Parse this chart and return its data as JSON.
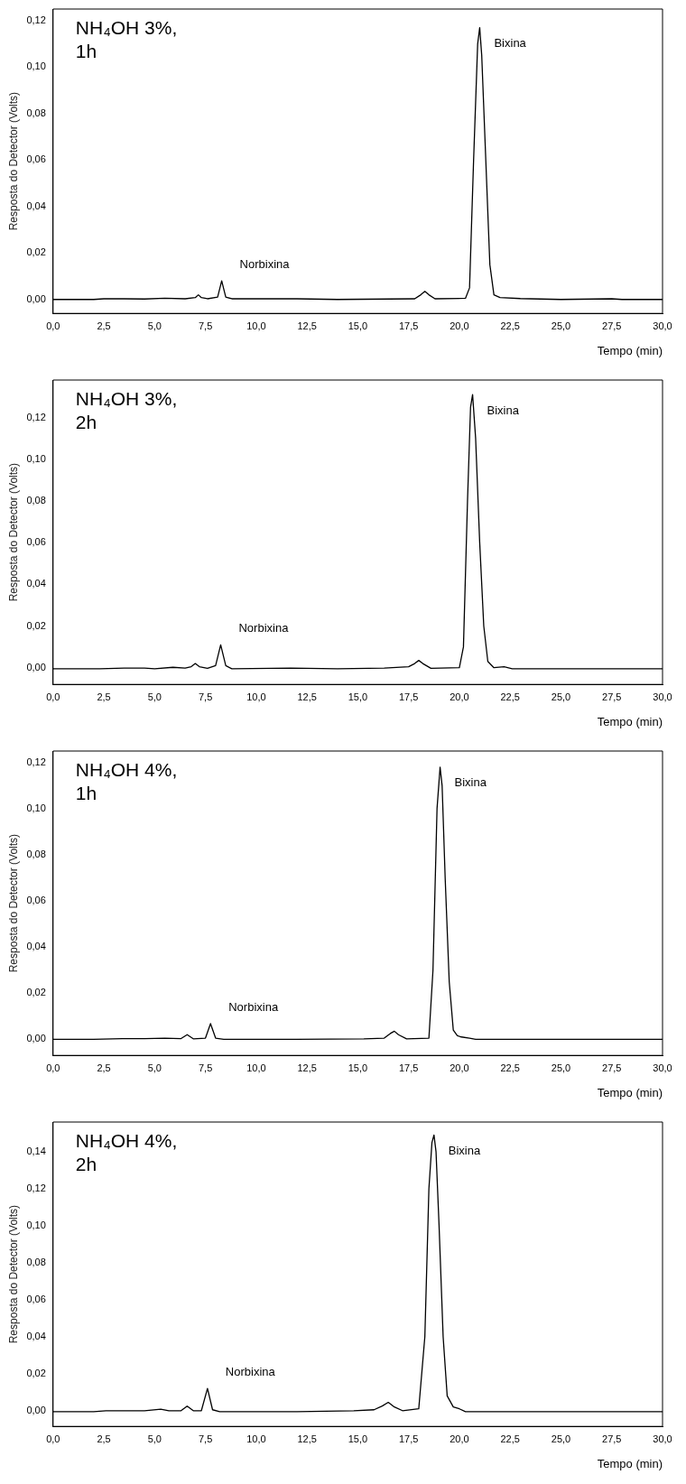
{
  "chart_data": [
    {
      "type": "line",
      "title": "NH₄OH 3%, 1h",
      "xlabel": "Tempo (min)",
      "ylabel": "Resposta do Detector (Volts)",
      "color": "#000000",
      "x": [
        0,
        2,
        2.5,
        3.5,
        4.5,
        5.5,
        6.5,
        7.0,
        7.15,
        7.3,
        7.6,
        8.1,
        8.3,
        8.5,
        8.8,
        12,
        14,
        17.8,
        18.1,
        18.3,
        18.5,
        18.8,
        20.3,
        20.5,
        20.7,
        20.9,
        21.0,
        21.1,
        21.3,
        21.5,
        21.7,
        22.0,
        23,
        25,
        27.5,
        28,
        30
      ],
      "values": [
        0,
        0,
        0.0003,
        0.0003,
        0.0002,
        0.0005,
        0.0003,
        0.0008,
        0.002,
        0.0008,
        0.0003,
        0.001,
        0.008,
        0.001,
        0.0003,
        0.0003,
        0,
        0.0003,
        0.002,
        0.0035,
        0.002,
        0.0003,
        0.0005,
        0.005,
        0.06,
        0.11,
        0.117,
        0.105,
        0.06,
        0.015,
        0.002,
        0.0008,
        0.0004,
        0,
        0.0003,
        0,
        0
      ],
      "xlim": [
        0,
        30
      ],
      "xticks": [
        {
          "value": 0,
          "label": "0,0"
        },
        {
          "value": 2.5,
          "label": "2,5"
        },
        {
          "value": 5,
          "label": "5,0"
        },
        {
          "value": 7.5,
          "label": "7,5"
        },
        {
          "value": 10,
          "label": "10,0"
        },
        {
          "value": 12.5,
          "label": "12,5"
        },
        {
          "value": 15,
          "label": "15,0"
        },
        {
          "value": 17.5,
          "label": "17,5"
        },
        {
          "value": 20,
          "label": "20,0"
        },
        {
          "value": 22.5,
          "label": "22,5"
        },
        {
          "value": 25,
          "label": "25,0"
        },
        {
          "value": 27.5,
          "label": "27,5"
        },
        {
          "value": 30,
          "label": "30,0"
        }
      ],
      "ylim": [
        -0.006,
        0.125
      ],
      "yticks": [
        {
          "value": 0,
          "label": "0,00"
        },
        {
          "value": 0.02,
          "label": "0,02"
        },
        {
          "value": 0.04,
          "label": "0,04"
        },
        {
          "value": 0.06,
          "label": "0,06"
        },
        {
          "value": 0.08,
          "label": "0,08"
        },
        {
          "value": 0.1,
          "label": "0,10"
        },
        {
          "value": 0.12,
          "label": "0,12"
        }
      ],
      "annotations": [
        {
          "text": "Norbixina",
          "x": 8.3,
          "y": 0.008
        },
        {
          "text": "Bixina",
          "x": 21.0,
          "y": 0.117
        }
      ]
    },
    {
      "type": "line",
      "title": "NH₄OH 3%, 2h",
      "xlabel": "Tempo (min)",
      "ylabel": "Resposta do Detector (Volts)",
      "color": "#000000",
      "x": [
        0,
        2.3,
        3.5,
        4.5,
        5.0,
        5.9,
        6.5,
        6.8,
        7.0,
        7.2,
        7.6,
        8.0,
        8.25,
        8.5,
        8.8,
        11.7,
        14,
        16.3,
        17.5,
        17.8,
        18.0,
        18.2,
        18.6,
        20.0,
        20.2,
        20.4,
        20.55,
        20.65,
        20.8,
        21.0,
        21.2,
        21.4,
        21.7,
        22.2,
        22.6,
        25,
        30
      ],
      "values": [
        -0.0005,
        -0.0005,
        -0.0002,
        -0.0002,
        -0.0005,
        0.0002,
        -0.0002,
        0.0005,
        0.002,
        0.0005,
        -0.0003,
        0.001,
        0.011,
        0.001,
        -0.0005,
        -0.0002,
        -0.0005,
        -0.0002,
        0.0005,
        0.002,
        0.0035,
        0.002,
        -0.0003,
        0,
        0.01,
        0.08,
        0.125,
        0.131,
        0.11,
        0.06,
        0.02,
        0.003,
        0,
        0.0005,
        -0.0005,
        -0.0005,
        -0.0005
      ],
      "xlim": [
        0,
        30
      ],
      "xticks": [
        {
          "value": 0,
          "label": "0,0"
        },
        {
          "value": 2.5,
          "label": "2,5"
        },
        {
          "value": 5,
          "label": "5,0"
        },
        {
          "value": 7.5,
          "label": "7,5"
        },
        {
          "value": 10,
          "label": "10,0"
        },
        {
          "value": 12.5,
          "label": "12,5"
        },
        {
          "value": 15,
          "label": "15,0"
        },
        {
          "value": 17.5,
          "label": "17,5"
        },
        {
          "value": 20,
          "label": "20,0"
        },
        {
          "value": 22.5,
          "label": "22,5"
        },
        {
          "value": 25,
          "label": "25,0"
        },
        {
          "value": 27.5,
          "label": "27,5"
        },
        {
          "value": 30,
          "label": "30,0"
        }
      ],
      "ylim": [
        -0.008,
        0.138
      ],
      "yticks": [
        {
          "value": 0,
          "label": "0,00"
        },
        {
          "value": 0.02,
          "label": "0,02"
        },
        {
          "value": 0.04,
          "label": "0,04"
        },
        {
          "value": 0.06,
          "label": "0,06"
        },
        {
          "value": 0.08,
          "label": "0,08"
        },
        {
          "value": 0.1,
          "label": "0,10"
        },
        {
          "value": 0.12,
          "label": "0,12"
        }
      ],
      "annotations": [
        {
          "text": "Norbixina",
          "x": 8.25,
          "y": 0.011
        },
        {
          "text": "Bixina",
          "x": 20.65,
          "y": 0.131
        }
      ]
    },
    {
      "type": "line",
      "title": "NH₄OH 4%, 1h",
      "xlabel": "Tempo (min)",
      "ylabel": "Resposta do Detector (Volts)",
      "color": "#000000",
      "x": [
        0,
        2,
        3.4,
        4.5,
        5.5,
        6.3,
        6.6,
        6.9,
        7.5,
        7.75,
        8.0,
        8.4,
        12,
        15.3,
        16.3,
        16.6,
        16.8,
        17.0,
        17.4,
        18.5,
        18.7,
        18.9,
        19.05,
        19.15,
        19.3,
        19.5,
        19.7,
        19.9,
        20.1,
        20.5,
        20.8,
        25,
        30
      ],
      "values": [
        0,
        0,
        0.0003,
        0.0003,
        0.0005,
        0.0003,
        0.002,
        0.0002,
        0.0005,
        0.0068,
        0.0005,
        0,
        0,
        0.0002,
        0.0005,
        0.0025,
        0.0035,
        0.002,
        0.0002,
        0.0005,
        0.03,
        0.1,
        0.118,
        0.11,
        0.07,
        0.025,
        0.004,
        0.0015,
        0.001,
        0.0005,
        0,
        0,
        0
      ],
      "xlim": [
        0,
        30
      ],
      "xticks": [
        {
          "value": 0,
          "label": "0,0"
        },
        {
          "value": 2.5,
          "label": "2,5"
        },
        {
          "value": 5,
          "label": "5,0"
        },
        {
          "value": 7.5,
          "label": "7,5"
        },
        {
          "value": 10,
          "label": "10,0"
        },
        {
          "value": 12.5,
          "label": "12,5"
        },
        {
          "value": 15,
          "label": "15,0"
        },
        {
          "value": 17.5,
          "label": "17,5"
        },
        {
          "value": 20,
          "label": "20,0"
        },
        {
          "value": 22.5,
          "label": "22,5"
        },
        {
          "value": 25,
          "label": "25,0"
        },
        {
          "value": 27.5,
          "label": "27,5"
        },
        {
          "value": 30,
          "label": "30,0"
        }
      ],
      "ylim": [
        -0.007,
        0.125
      ],
      "yticks": [
        {
          "value": 0,
          "label": "0,00"
        },
        {
          "value": 0.02,
          "label": "0,02"
        },
        {
          "value": 0.04,
          "label": "0,04"
        },
        {
          "value": 0.06,
          "label": "0,06"
        },
        {
          "value": 0.08,
          "label": "0,08"
        },
        {
          "value": 0.1,
          "label": "0,10"
        },
        {
          "value": 0.12,
          "label": "0,12"
        }
      ],
      "annotations": [
        {
          "text": "Norbixina",
          "x": 7.75,
          "y": 0.0068
        },
        {
          "text": "Bixina",
          "x": 19.05,
          "y": 0.118
        }
      ]
    },
    {
      "type": "line",
      "title": "NH₄OH 4%, 2h",
      "xlabel": "Tempo (min)",
      "ylabel": "Resposta do Detector (Volts)",
      "color": "#000000",
      "x": [
        0,
        2,
        2.6,
        3.5,
        4.5,
        5.3,
        5.7,
        6.3,
        6.6,
        6.9,
        7.3,
        7.6,
        7.85,
        8.2,
        12,
        14.8,
        15.8,
        16.2,
        16.5,
        16.8,
        17.2,
        18.0,
        18.3,
        18.5,
        18.65,
        18.75,
        18.85,
        19.0,
        19.2,
        19.4,
        19.7,
        20.0,
        20.3,
        25,
        30
      ],
      "values": [
        -0.0005,
        -0.0005,
        0,
        0,
        0,
        0.0008,
        0,
        0,
        0.0025,
        0,
        0,
        0.012,
        0.0005,
        -0.0005,
        -0.0005,
        0,
        0.0005,
        0.0025,
        0.0045,
        0.002,
        0,
        0.001,
        0.04,
        0.12,
        0.145,
        0.149,
        0.14,
        0.1,
        0.04,
        0.008,
        0.002,
        0.001,
        -0.0005,
        -0.0005,
        -0.0005
      ],
      "xlim": [
        0,
        30
      ],
      "xticks": [
        {
          "value": 0,
          "label": "0,0"
        },
        {
          "value": 2.5,
          "label": "2,5"
        },
        {
          "value": 5,
          "label": "5,0"
        },
        {
          "value": 7.5,
          "label": "7,5"
        },
        {
          "value": 10,
          "label": "10,0"
        },
        {
          "value": 12.5,
          "label": "12,5"
        },
        {
          "value": 15,
          "label": "15,0"
        },
        {
          "value": 17.5,
          "label": "17,5"
        },
        {
          "value": 20,
          "label": "20,0"
        },
        {
          "value": 22.5,
          "label": "22,5"
        },
        {
          "value": 25,
          "label": "25,0"
        },
        {
          "value": 27.5,
          "label": "27,5"
        },
        {
          "value": 30,
          "label": "30,0"
        }
      ],
      "ylim": [
        -0.0085,
        0.156
      ],
      "yticks": [
        {
          "value": 0,
          "label": "0,00"
        },
        {
          "value": 0.02,
          "label": "0,02"
        },
        {
          "value": 0.04,
          "label": "0,04"
        },
        {
          "value": 0.06,
          "label": "0,06"
        },
        {
          "value": 0.08,
          "label": "0,08"
        },
        {
          "value": 0.1,
          "label": "0,10"
        },
        {
          "value": 0.12,
          "label": "0,12"
        },
        {
          "value": 0.14,
          "label": "0,14"
        }
      ],
      "annotations": [
        {
          "text": "Norbixina",
          "x": 7.6,
          "y": 0.012
        },
        {
          "text": "Bixina",
          "x": 18.75,
          "y": 0.149
        }
      ]
    }
  ]
}
